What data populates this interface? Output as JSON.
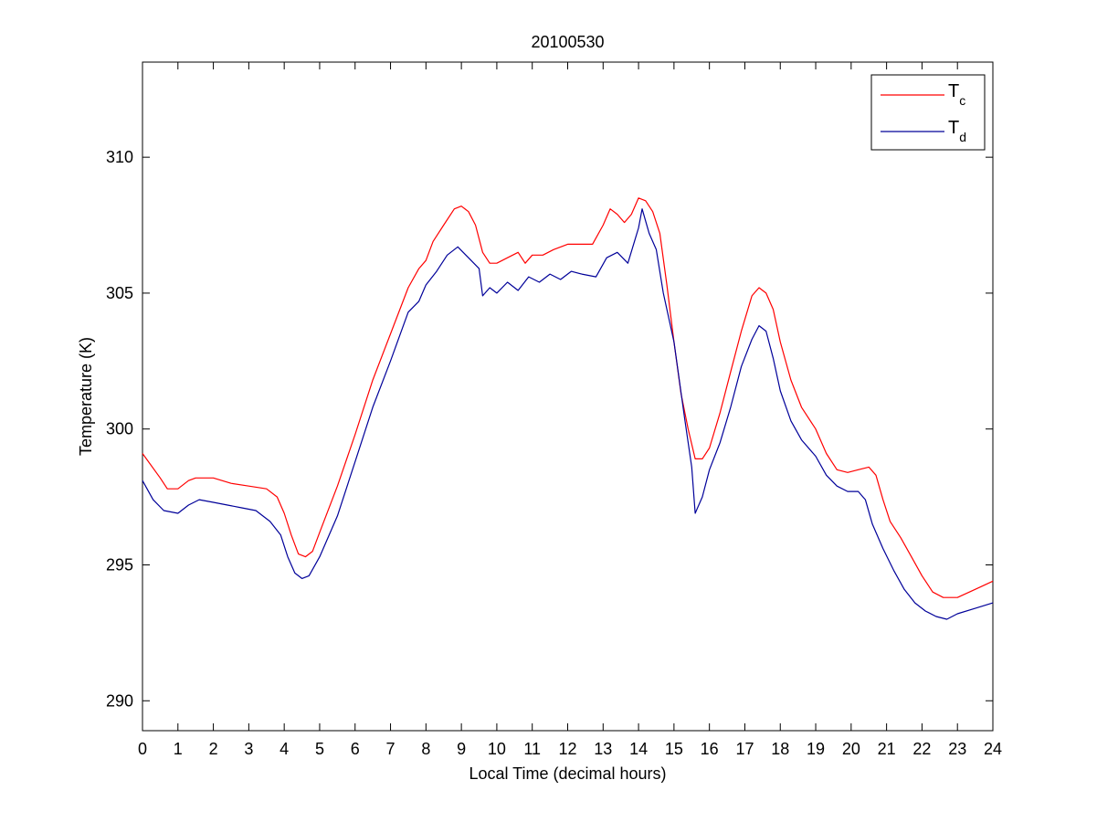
{
  "chart_data": {
    "type": "line",
    "title": "20100530",
    "xlabel": "Local Time (decimal hours)",
    "ylabel": "Temperature (K)",
    "xlim": [
      0,
      24
    ],
    "ylim": [
      288.9,
      313.5
    ],
    "xticks": [
      0,
      1,
      2,
      3,
      4,
      5,
      6,
      7,
      8,
      9,
      10,
      11,
      12,
      13,
      14,
      15,
      16,
      17,
      18,
      19,
      20,
      21,
      22,
      23,
      24
    ],
    "yticks": [
      290,
      295,
      300,
      305,
      310
    ],
    "grid": false,
    "legend_position": "top-right",
    "series": [
      {
        "name": "T",
        "name_subscript": "c",
        "color": "#ff0000",
        "x": [
          0,
          0.5,
          0.7,
          1.0,
          1.3,
          1.5,
          2.0,
          2.5,
          3.0,
          3.5,
          3.8,
          4.0,
          4.2,
          4.4,
          4.6,
          4.8,
          5.0,
          5.5,
          6.0,
          6.5,
          7.0,
          7.5,
          7.8,
          8.0,
          8.2,
          8.5,
          8.8,
          9.0,
          9.2,
          9.4,
          9.6,
          9.8,
          10.0,
          10.3,
          10.6,
          10.8,
          11.0,
          11.3,
          11.6,
          12.0,
          12.4,
          12.7,
          13.0,
          13.2,
          13.4,
          13.6,
          13.8,
          14.0,
          14.2,
          14.4,
          14.6,
          14.8,
          15.0,
          15.2,
          15.4,
          15.6,
          15.8,
          16.0,
          16.3,
          16.6,
          16.9,
          17.2,
          17.4,
          17.6,
          17.8,
          18.0,
          18.3,
          18.6,
          19.0,
          19.3,
          19.6,
          19.9,
          20.2,
          20.5,
          20.7,
          20.9,
          21.1,
          21.4,
          21.7,
          22.0,
          22.3,
          22.6,
          23.0,
          23.5,
          24.0
        ],
        "values": [
          299.1,
          298.2,
          297.8,
          297.8,
          298.1,
          298.2,
          298.2,
          298.0,
          297.9,
          297.8,
          297.5,
          296.9,
          296.1,
          295.4,
          295.3,
          295.5,
          296.2,
          297.9,
          299.8,
          301.8,
          303.5,
          305.2,
          305.9,
          306.2,
          306.9,
          307.5,
          308.1,
          308.2,
          308.0,
          307.5,
          306.5,
          306.1,
          306.1,
          306.3,
          306.5,
          306.1,
          306.4,
          306.4,
          306.6,
          306.8,
          306.8,
          306.8,
          307.5,
          308.1,
          307.9,
          307.6,
          307.9,
          308.5,
          308.4,
          308.0,
          307.2,
          305.3,
          303.2,
          301.3,
          300.0,
          298.9,
          298.9,
          299.3,
          300.6,
          302.1,
          303.6,
          304.9,
          305.2,
          305.0,
          304.4,
          303.2,
          301.8,
          300.8,
          300.0,
          299.1,
          298.5,
          298.4,
          298.5,
          298.6,
          298.3,
          297.4,
          296.6,
          296.0,
          295.3,
          294.6,
          294.0,
          293.8,
          293.8,
          294.1,
          294.4
        ]
      },
      {
        "name": "T",
        "name_subscript": "d",
        "color": "#000099",
        "x": [
          0,
          0.3,
          0.6,
          1.0,
          1.3,
          1.6,
          2.0,
          2.4,
          2.8,
          3.2,
          3.6,
          3.9,
          4.1,
          4.3,
          4.5,
          4.7,
          5.0,
          5.5,
          6.0,
          6.5,
          7.0,
          7.5,
          7.8,
          8.0,
          8.3,
          8.6,
          8.9,
          9.2,
          9.5,
          9.6,
          9.8,
          10.0,
          10.3,
          10.6,
          10.9,
          11.2,
          11.5,
          11.8,
          12.1,
          12.4,
          12.8,
          13.1,
          13.4,
          13.7,
          14.0,
          14.1,
          14.3,
          14.5,
          14.7,
          15.0,
          15.3,
          15.5,
          15.6,
          15.8,
          16.0,
          16.3,
          16.6,
          16.9,
          17.2,
          17.4,
          17.6,
          17.8,
          18.0,
          18.3,
          18.6,
          19.0,
          19.3,
          19.6,
          19.9,
          20.2,
          20.4,
          20.6,
          20.9,
          21.2,
          21.5,
          21.8,
          22.1,
          22.4,
          22.7,
          23.0,
          23.5,
          24.0
        ],
        "values": [
          298.1,
          297.4,
          297.0,
          296.9,
          297.2,
          297.4,
          297.3,
          297.2,
          297.1,
          297.0,
          296.6,
          296.1,
          295.3,
          294.7,
          294.5,
          294.6,
          295.3,
          296.8,
          298.8,
          300.8,
          302.5,
          304.3,
          304.7,
          305.3,
          305.8,
          306.4,
          306.7,
          306.3,
          305.9,
          304.9,
          305.2,
          305.0,
          305.4,
          305.1,
          305.6,
          305.4,
          305.7,
          305.5,
          305.8,
          305.7,
          305.6,
          306.3,
          306.5,
          306.1,
          307.4,
          308.1,
          307.2,
          306.6,
          305.0,
          303.2,
          300.4,
          298.6,
          296.9,
          297.5,
          298.5,
          299.5,
          300.8,
          302.3,
          303.3,
          303.8,
          303.6,
          302.6,
          301.4,
          300.3,
          299.6,
          299.0,
          298.3,
          297.9,
          297.7,
          297.7,
          297.4,
          296.5,
          295.6,
          294.8,
          294.1,
          293.6,
          293.3,
          293.1,
          293.0,
          293.2,
          293.4,
          293.6
        ]
      }
    ]
  }
}
